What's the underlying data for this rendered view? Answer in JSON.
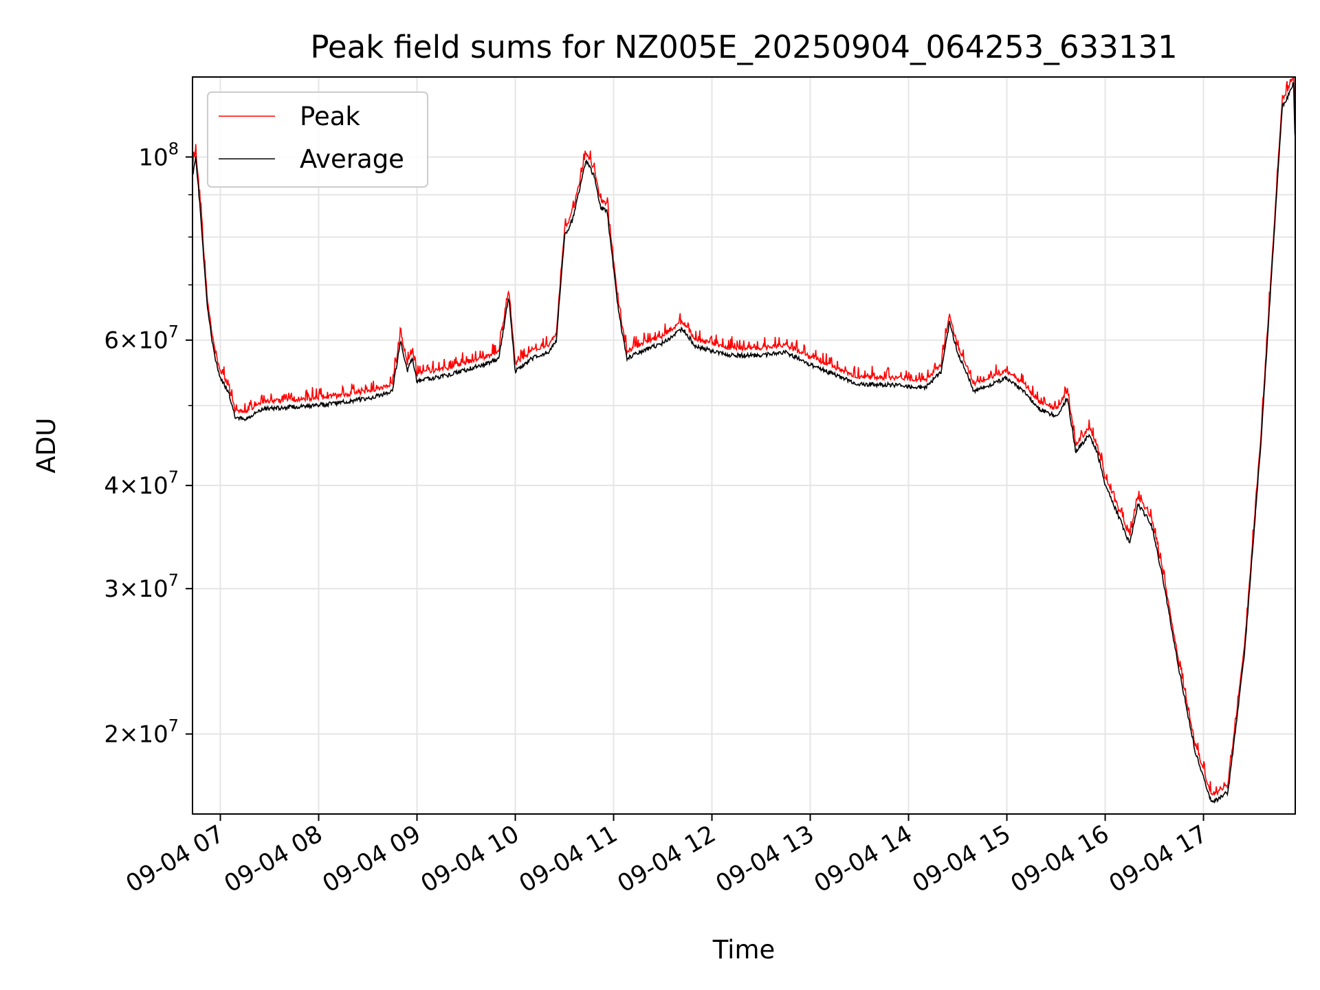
{
  "chart_data": {
    "type": "line",
    "title": "Peak field sums for NZ005E_20250904_064253_633131",
    "xlabel": "Time",
    "ylabel": "ADU",
    "y_scale": "log",
    "grid": true,
    "legend_position": "top-left",
    "xlim": [
      "2025-09-04 06:43",
      "2025-09-04 17:56"
    ],
    "ylim": [
      16000000,
      125000000
    ],
    "x_ticks": [
      "09-04 07",
      "09-04 08",
      "09-04 09",
      "09-04 10",
      "09-04 11",
      "09-04 12",
      "09-04 13",
      "09-04 14",
      "09-04 15",
      "09-04 16",
      "09-04 17"
    ],
    "x_tick_times": [
      "2025-09-04 07:00",
      "2025-09-04 08:00",
      "2025-09-04 09:00",
      "2025-09-04 10:00",
      "2025-09-04 11:00",
      "2025-09-04 12:00",
      "2025-09-04 13:00",
      "2025-09-04 14:00",
      "2025-09-04 15:00",
      "2025-09-04 16:00",
      "2025-09-04 17:00"
    ],
    "y_ticks": [
      {
        "value": 20000000,
        "mantissa": "2",
        "exponent": "7"
      },
      {
        "value": 30000000,
        "mantissa": "3",
        "exponent": "7"
      },
      {
        "value": 40000000,
        "mantissa": "4",
        "exponent": "7"
      },
      {
        "value": 60000000,
        "mantissa": "6",
        "exponent": "7"
      },
      {
        "value": 100000000,
        "mantissa": "",
        "exponent": "8"
      }
    ],
    "y_minor_ticks": [
      50000000,
      70000000,
      80000000,
      90000000
    ],
    "series": [
      {
        "name": "Peak",
        "color": "#ff0000"
      },
      {
        "name": "Average",
        "color": "#000000"
      }
    ],
    "average_points": [
      [
        "2025-09-04 06:43",
        95000000
      ],
      [
        "2025-09-04 06:45",
        100000000
      ],
      [
        "2025-09-04 06:48",
        85000000
      ],
      [
        "2025-09-04 06:52",
        66000000
      ],
      [
        "2025-09-04 06:56",
        58000000
      ],
      [
        "2025-09-04 07:00",
        54000000
      ],
      [
        "2025-09-04 07:05",
        52000000
      ],
      [
        "2025-09-04 07:09",
        48500000
      ],
      [
        "2025-09-04 07:15",
        48000000
      ],
      [
        "2025-09-04 07:25",
        49500000
      ],
      [
        "2025-09-04 07:45",
        49800000
      ],
      [
        "2025-09-04 08:10",
        50300000
      ],
      [
        "2025-09-04 08:30",
        51000000
      ],
      [
        "2025-09-04 08:45",
        52000000
      ],
      [
        "2025-09-04 08:50",
        60000000
      ],
      [
        "2025-09-04 08:54",
        55000000
      ],
      [
        "2025-09-04 08:57",
        57000000
      ],
      [
        "2025-09-04 09:00",
        53500000
      ],
      [
        "2025-09-04 09:20",
        54500000
      ],
      [
        "2025-09-04 09:40",
        56000000
      ],
      [
        "2025-09-04 09:50",
        57000000
      ],
      [
        "2025-09-04 09:56",
        68000000
      ],
      [
        "2025-09-04 10:00",
        55000000
      ],
      [
        "2025-09-04 10:10",
        57000000
      ],
      [
        "2025-09-04 10:20",
        58000000
      ],
      [
        "2025-09-04 10:25",
        60000000
      ],
      [
        "2025-09-04 10:30",
        80000000
      ],
      [
        "2025-09-04 10:35",
        84000000
      ],
      [
        "2025-09-04 10:43",
        99000000
      ],
      [
        "2025-09-04 10:48",
        95000000
      ],
      [
        "2025-09-04 10:52",
        87000000
      ],
      [
        "2025-09-04 10:56",
        86000000
      ],
      [
        "2025-09-04 11:03",
        65000000
      ],
      [
        "2025-09-04 11:08",
        57000000
      ],
      [
        "2025-09-04 11:20",
        58500000
      ],
      [
        "2025-09-04 11:30",
        59500000
      ],
      [
        "2025-09-04 11:42",
        62000000
      ],
      [
        "2025-09-04 11:50",
        59000000
      ],
      [
        "2025-09-04 12:10",
        57500000
      ],
      [
        "2025-09-04 12:30",
        57500000
      ],
      [
        "2025-09-04 12:45",
        58000000
      ],
      [
        "2025-09-04 13:00",
        56000000
      ],
      [
        "2025-09-04 13:30",
        53000000
      ],
      [
        "2025-09-04 13:50",
        53000000
      ],
      [
        "2025-09-04 14:10",
        52500000
      ],
      [
        "2025-09-04 14:20",
        55000000
      ],
      [
        "2025-09-04 14:25",
        63000000
      ],
      [
        "2025-09-04 14:30",
        58000000
      ],
      [
        "2025-09-04 14:40",
        52000000
      ],
      [
        "2025-09-04 15:00",
        54000000
      ],
      [
        "2025-09-04 15:10",
        52000000
      ],
      [
        "2025-09-04 15:20",
        49500000
      ],
      [
        "2025-09-04 15:30",
        48500000
      ],
      [
        "2025-09-04 15:37",
        51000000
      ],
      [
        "2025-09-04 15:42",
        44000000
      ],
      [
        "2025-09-04 15:50",
        46000000
      ],
      [
        "2025-09-04 15:55",
        44000000
      ],
      [
        "2025-09-04 16:00",
        40000000
      ],
      [
        "2025-09-04 16:10",
        36000000
      ],
      [
        "2025-09-04 16:15",
        34000000
      ],
      [
        "2025-09-04 16:20",
        38000000
      ],
      [
        "2025-09-04 16:28",
        36000000
      ],
      [
        "2025-09-04 16:35",
        31000000
      ],
      [
        "2025-09-04 16:45",
        24000000
      ],
      [
        "2025-09-04 16:55",
        19000000
      ],
      [
        "2025-09-04 17:05",
        16500000
      ],
      [
        "2025-09-04 17:15",
        17000000
      ],
      [
        "2025-09-04 17:25",
        25000000
      ],
      [
        "2025-09-04 17:35",
        45000000
      ],
      [
        "2025-09-04 17:43",
        80000000
      ],
      [
        "2025-09-04 17:48",
        115000000
      ],
      [
        "2025-09-04 17:53",
        120000000
      ],
      [
        "2025-09-04 17:55",
        123000000
      ],
      [
        "2025-09-04 17:56",
        102000000
      ]
    ],
    "peak_offset_factor": 1.02
  }
}
